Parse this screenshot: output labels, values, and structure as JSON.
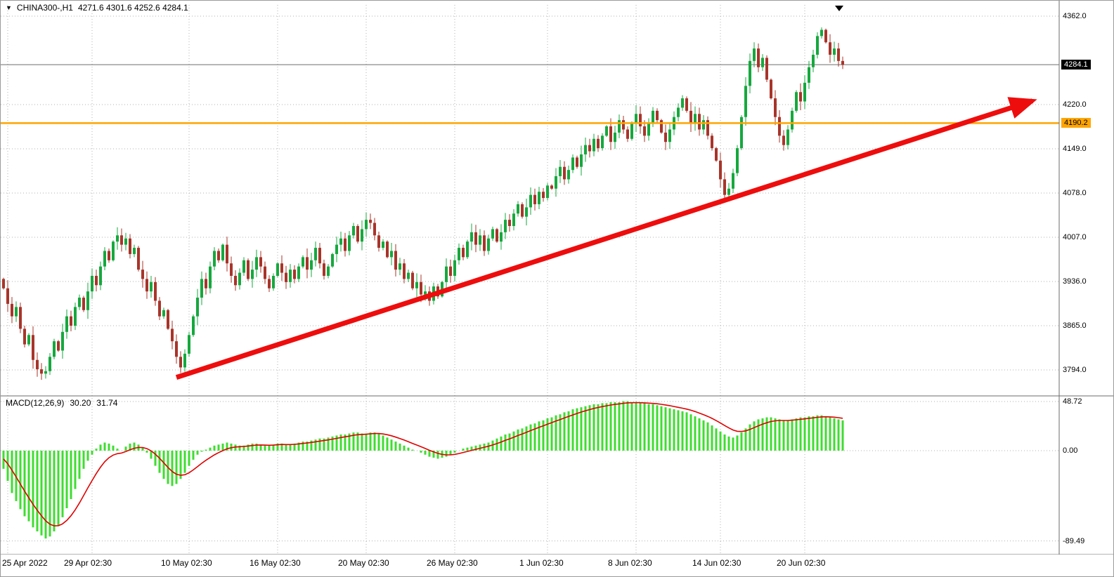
{
  "window": {
    "title_symbol": "CHINA300-,H1",
    "title_ohlc": "4271.6 4301.6 4252.6 4284.1"
  },
  "colors": {
    "up_candle": "#16a83e",
    "down_candle": "#a8342a",
    "macd_histogram": "#3fdd30",
    "macd_signal": "#e00000",
    "level_line": "#ffa500",
    "trend_arrow": "#ee0d0d",
    "grid": "#b0b0b0",
    "current_price_line": "#6e6e6e",
    "price_tag_bg": "#000000",
    "price_tag_fg": "#ffffff",
    "level_tag_bg": "#ffa500"
  },
  "chart_data": {
    "type": "candlestick",
    "title": "CHINA300-,H1",
    "timeframe": "H1",
    "ohlc_text": "4271.6 4301.6 4252.6 4284.1",
    "ohlc_header": {
      "open": "4271.6",
      "high": "4301.6",
      "low": "4252.6",
      "close": "4284.1"
    },
    "price_axis_labels": [
      "4362.0",
      "4220.0",
      "4149.0",
      "4078.0",
      "4007.0",
      "3936.0",
      "3865.0",
      "3794.0"
    ],
    "price_axis_values": [
      4362.0,
      4220.0,
      4149.0,
      4078.0,
      4007.0,
      3936.0,
      3865.0,
      3794.0
    ],
    "current_price": 4284.1,
    "current_price_label": "4284.1",
    "horizontal_level": 4190.2,
    "horizontal_level_label": "4190.2",
    "y_range": [
      3753,
      4380
    ],
    "time_ticks": [
      {
        "label": "25 Apr 2022",
        "index": 1
      },
      {
        "label": "29 Apr 02:30",
        "index": 21
      },
      {
        "label": "10 May 02:30",
        "index": 44
      },
      {
        "label": "16 May 02:30",
        "index": 65
      },
      {
        "label": "20 May 02:30",
        "index": 86
      },
      {
        "label": "26 May 02:30",
        "index": 107
      },
      {
        "label": "1 Jun 02:30",
        "index": 129
      },
      {
        "label": "8 Jun 02:30",
        "index": 150
      },
      {
        "label": "14 Jun 02:30",
        "index": 170
      },
      {
        "label": "20 Jun 02:30",
        "index": 190
      }
    ],
    "candles": {
      "first_open": 3940,
      "closes": [
        3925,
        3900,
        3880,
        3895,
        3860,
        3835,
        3850,
        3810,
        3795,
        3788,
        3792,
        3815,
        3840,
        3825,
        3855,
        3880,
        3865,
        3895,
        3910,
        3890,
        3920,
        3945,
        3930,
        3960,
        3985,
        3970,
        4000,
        4010,
        3995,
        4005,
        3980,
        3990,
        3955,
        3940,
        3920,
        3935,
        3905,
        3880,
        3890,
        3860,
        3840,
        3815,
        3798,
        3820,
        3850,
        3880,
        3910,
        3940,
        3925,
        3960,
        3985,
        3970,
        3995,
        3965,
        3945,
        3930,
        3950,
        3970,
        3940,
        3955,
        3975,
        3960,
        3940,
        3925,
        3945,
        3965,
        3950,
        3935,
        3955,
        3940,
        3960,
        3975,
        3955,
        3970,
        3990,
        3965,
        3945,
        3960,
        3980,
        3995,
        4005,
        3985,
        4010,
        4025,
        4000,
        4020,
        4035,
        4030,
        4010,
        3990,
        4000,
        3975,
        3985,
        3955,
        3965,
        3940,
        3950,
        3925,
        3935,
        3915,
        3920,
        3905,
        3928,
        3912,
        3935,
        3960,
        3945,
        3970,
        3990,
        3975,
        4000,
        4015,
        3995,
        4010,
        3985,
        4005,
        4020,
        4000,
        4015,
        4035,
        4025,
        4045,
        4060,
        4040,
        4055,
        4075,
        4060,
        4080,
        4070,
        4090,
        4085,
        4105,
        4120,
        4100,
        4115,
        4135,
        4120,
        4140,
        4155,
        4145,
        4165,
        4150,
        4170,
        4185,
        4160,
        4175,
        4195,
        4180,
        4165,
        4190,
        4205,
        4185,
        4170,
        4190,
        4210,
        4195,
        4175,
        4160,
        4180,
        4200,
        4215,
        4230,
        4210,
        4190,
        4205,
        4180,
        4195,
        4170,
        4150,
        4130,
        4100,
        4075,
        4085,
        4110,
        4150,
        4200,
        4250,
        4290,
        4310,
        4280,
        4295,
        4260,
        4230,
        4200,
        4170,
        4155,
        4180,
        4210,
        4240,
        4225,
        4255,
        4280,
        4300,
        4330,
        4340,
        4320,
        4300,
        4310,
        4290,
        4284
      ]
    },
    "macd": {
      "label": "MACD(12,26,9)",
      "value_main": "30.20",
      "value_signal": "31.74",
      "axis_labels": [
        "48.72",
        "0.00",
        "-89.49"
      ],
      "axis_values": [
        48.72,
        0,
        -89.49
      ],
      "y_range": [
        53.5,
        -102
      ],
      "histogram": [
        -18,
        -30,
        -42,
        -50,
        -58,
        -65,
        -70,
        -76,
        -80,
        -84,
        -87,
        -85,
        -80,
        -74,
        -66,
        -57,
        -48,
        -38,
        -28,
        -18,
        -10,
        -4,
        2,
        6,
        8,
        7,
        5,
        2,
        0,
        4,
        7,
        8,
        6,
        3,
        -2,
        -8,
        -15,
        -22,
        -28,
        -33,
        -35,
        -33,
        -28,
        -22,
        -15,
        -9,
        -4,
        -1,
        1,
        3,
        5,
        6,
        7,
        8,
        7,
        6,
        5,
        5,
        6,
        7,
        7,
        6,
        5,
        5,
        6,
        7,
        7,
        6,
        6,
        7,
        8,
        9,
        9,
        10,
        11,
        12,
        12,
        13,
        14,
        15,
        16,
        16,
        17,
        18,
        18,
        17,
        17,
        18,
        18,
        17,
        15,
        13,
        11,
        9,
        7,
        5,
        3,
        1,
        0,
        -2,
        -4,
        -6,
        -7,
        -8,
        -7,
        -6,
        -4,
        -2,
        0,
        2,
        3,
        4,
        5,
        6,
        7,
        8,
        10,
        12,
        14,
        16,
        17,
        19,
        21,
        22,
        24,
        26,
        27,
        29,
        30,
        32,
        33,
        35,
        36,
        38,
        39,
        41,
        42,
        43,
        44,
        45,
        46,
        46,
        47,
        47,
        48,
        48,
        48,
        49,
        49,
        48,
        48,
        47,
        47,
        46,
        46,
        45,
        44,
        43,
        42,
        41,
        40,
        39,
        38,
        36,
        34,
        32,
        30,
        28,
        25,
        22,
        19,
        16,
        14,
        13,
        15,
        18,
        22,
        26,
        29,
        31,
        32,
        33,
        33,
        32,
        31,
        30,
        30,
        31,
        32,
        33,
        33,
        34,
        34,
        35,
        35,
        34,
        33,
        32,
        31,
        30
      ]
    },
    "trend_arrow": {
      "from_index": 41,
      "from_price": 3782,
      "to_x": 1468,
      "to_price": 4226
    }
  }
}
